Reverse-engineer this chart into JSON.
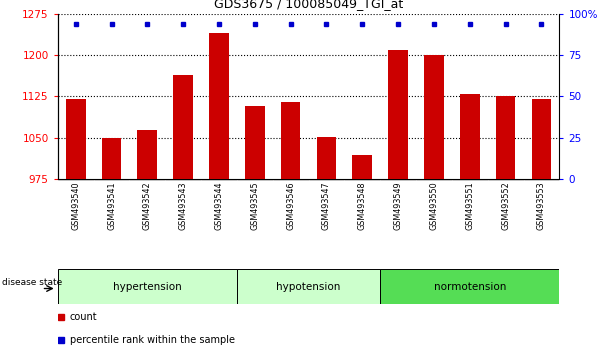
{
  "title": "GDS3675 / 100085049_TGI_at",
  "samples": [
    "GSM493540",
    "GSM493541",
    "GSM493542",
    "GSM493543",
    "GSM493544",
    "GSM493545",
    "GSM493546",
    "GSM493547",
    "GSM493548",
    "GSM493549",
    "GSM493550",
    "GSM493551",
    "GSM493552",
    "GSM493553"
  ],
  "bar_values": [
    1120,
    1050,
    1063,
    1165,
    1240,
    1107,
    1115,
    1052,
    1018,
    1210,
    1200,
    1130,
    1125,
    1120
  ],
  "y_min": 975,
  "y_max": 1275,
  "y_ticks_left": [
    975,
    1050,
    1125,
    1200,
    1275
  ],
  "y_ticks_right_labels": [
    "0",
    "25",
    "50",
    "75",
    "100%"
  ],
  "bar_color": "#cc0000",
  "percentile_color": "#0000cc",
  "dotted_lines": [
    1050,
    1125,
    1200
  ],
  "groups": [
    {
      "label": "hypertension",
      "start": 0,
      "end": 4,
      "color": "#ccffcc"
    },
    {
      "label": "hypotension",
      "start": 5,
      "end": 8,
      "color": "#ccffcc"
    },
    {
      "label": "normotension",
      "start": 9,
      "end": 13,
      "color": "#55dd55"
    }
  ],
  "disease_state_label": "disease state",
  "legend_count": "count",
  "legend_percentile": "percentile rank within the sample",
  "tick_bg_color": "#d0d0d0",
  "fig_bg": "#ffffff"
}
